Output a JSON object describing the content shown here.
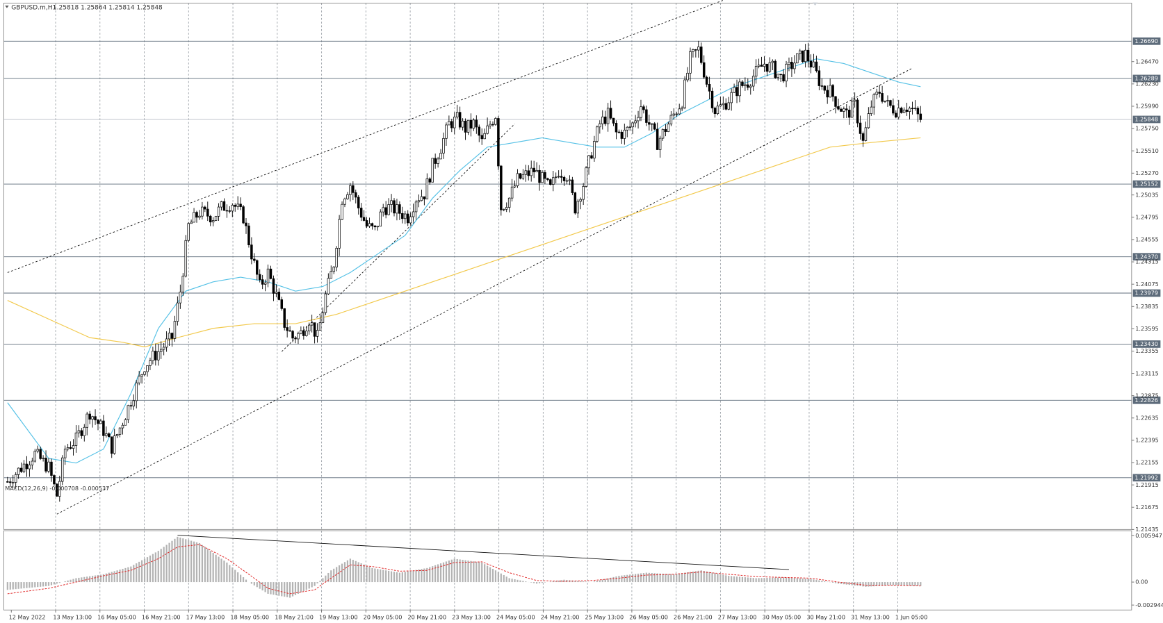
{
  "header": {
    "symbol": "GBPUSD.m,H1",
    "ohlc": "1.25818 1.25864 1.25814 1.25848"
  },
  "macd": {
    "label": "MACD(12,26,9) -0.000708 -0.000537",
    "ticks": [
      "0.005947",
      "0.00",
      "-0.002944"
    ]
  },
  "chart_data": {
    "type": "candlestick",
    "price_ticks": [
      "1.26470",
      "1.26230",
      "1.25990",
      "1.25750",
      "1.25510",
      "1.25270",
      "1.25035",
      "1.24795",
      "1.24555",
      "1.24315",
      "1.24075",
      "1.23835",
      "1.23595",
      "1.23355",
      "1.23115",
      "1.22875",
      "1.22635",
      "1.22395",
      "1.22155",
      "1.21915",
      "1.21675",
      "1.21435"
    ],
    "price_range": [
      1.21435,
      1.271
    ],
    "levels": [
      {
        "label": "1.26690",
        "value": 1.2669
      },
      {
        "label": "1.26289",
        "value": 1.26289
      },
      {
        "label": "1.25152",
        "value": 1.25152
      },
      {
        "label": "1.24370",
        "value": 1.2437
      },
      {
        "label": "1.23979",
        "value": 1.23979
      },
      {
        "label": "1.23430",
        "value": 1.2343
      },
      {
        "label": "1.22826",
        "value": 1.22826
      },
      {
        "label": "1.21992",
        "value": 1.21992
      }
    ],
    "current_price": {
      "label": "1.25848",
      "value": 1.25848
    },
    "time_labels": [
      "12 May 2022",
      "13 May 13:00",
      "16 May 05:00",
      "16 May 21:00",
      "17 May 13:00",
      "18 May 05:00",
      "18 May 21:00",
      "19 May 13:00",
      "20 May 05:00",
      "20 May 21:00",
      "23 May 13:00",
      "24 May 05:00",
      "24 May 21:00",
      "25 May 13:00",
      "26 May 05:00",
      "26 May 21:00",
      "27 May 13:00",
      "30 May 05:00",
      "30 May 21:00",
      "31 May 13:00",
      "1 Jun 05:00"
    ],
    "price_path": [
      [
        0,
        1.2195
      ],
      [
        5,
        1.221
      ],
      [
        10,
        1.2225
      ],
      [
        15,
        1.221
      ],
      [
        18,
        1.218
      ],
      [
        21,
        1.223
      ],
      [
        25,
        1.224
      ],
      [
        30,
        1.227
      ],
      [
        35,
        1.225
      ],
      [
        38,
        1.2232
      ],
      [
        42,
        1.226
      ],
      [
        46,
        1.229
      ],
      [
        50,
        1.232
      ],
      [
        55,
        1.2335
      ],
      [
        60,
        1.235
      ],
      [
        63,
        1.24
      ],
      [
        66,
        1.247
      ],
      [
        70,
        1.2485
      ],
      [
        75,
        1.248
      ],
      [
        78,
        1.249
      ],
      [
        82,
        1.2495
      ],
      [
        86,
        1.248
      ],
      [
        89,
        1.244
      ],
      [
        92,
        1.2405
      ],
      [
        95,
        1.242
      ],
      [
        98,
        1.2395
      ],
      [
        101,
        1.2365
      ],
      [
        104,
        1.235
      ],
      [
        107,
        1.2355
      ],
      [
        110,
        1.237
      ],
      [
        113,
        1.235
      ],
      [
        116,
        1.2395
      ],
      [
        119,
        1.243
      ],
      [
        122,
        1.25
      ],
      [
        125,
        1.2515
      ],
      [
        128,
        1.249
      ],
      [
        131,
        1.247
      ],
      [
        134,
        1.2465
      ],
      [
        137,
        1.249
      ],
      [
        140,
        1.249
      ],
      [
        143,
        1.2485
      ],
      [
        146,
        1.248
      ],
      [
        149,
        1.25
      ],
      [
        152,
        1.2505
      ],
      [
        155,
        1.2535
      ],
      [
        158,
        1.2555
      ],
      [
        161,
        1.258
      ],
      [
        164,
        1.2585
      ],
      [
        167,
        1.2575
      ],
      [
        170,
        1.258
      ],
      [
        173,
        1.256
      ],
      [
        176,
        1.258
      ],
      [
        178,
        1.259
      ],
      [
        180,
        1.249
      ],
      [
        183,
        1.25
      ],
      [
        186,
        1.252
      ],
      [
        189,
        1.2525
      ],
      [
        192,
        1.253
      ],
      [
        195,
        1.252
      ],
      [
        198,
        1.251
      ],
      [
        201,
        1.253
      ],
      [
        204,
        1.2525
      ],
      [
        207,
        1.249
      ],
      [
        210,
        1.2515
      ],
      [
        213,
        1.255
      ],
      [
        216,
        1.258
      ],
      [
        219,
        1.259
      ],
      [
        222,
        1.257
      ],
      [
        225,
        1.257
      ],
      [
        228,
        1.258
      ],
      [
        231,
        1.26
      ],
      [
        234,
        1.258
      ],
      [
        237,
        1.256
      ],
      [
        240,
        1.2575
      ],
      [
        243,
        1.259
      ],
      [
        246,
        1.2605
      ],
      [
        249,
        1.265
      ],
      [
        252,
        1.266
      ],
      [
        255,
        1.2625
      ],
      [
        258,
        1.2595
      ],
      [
        261,
        1.26
      ],
      [
        264,
        1.261
      ],
      [
        267,
        1.262
      ],
      [
        270,
        1.2625
      ],
      [
        273,
        1.2635
      ],
      [
        276,
        1.2645
      ],
      [
        279,
        1.264
      ],
      [
        282,
        1.263
      ],
      [
        285,
        1.264
      ],
      [
        288,
        1.265
      ],
      [
        291,
        1.2655
      ],
      [
        294,
        1.264
      ],
      [
        297,
        1.262
      ],
      [
        300,
        1.2615
      ],
      [
        303,
        1.26
      ],
      [
        306,
        1.259
      ],
      [
        309,
        1.26
      ],
      [
        312,
        1.256
      ],
      [
        315,
        1.26
      ],
      [
        318,
        1.2615
      ],
      [
        321,
        1.26
      ],
      [
        324,
        1.2595
      ],
      [
        327,
        1.26
      ],
      [
        330,
        1.2595
      ],
      [
        333,
        1.2585
      ]
    ],
    "ema_fast_path": [
      [
        0,
        1.228
      ],
      [
        15,
        1.222
      ],
      [
        25,
        1.2215
      ],
      [
        35,
        1.223
      ],
      [
        45,
        1.229
      ],
      [
        55,
        1.236
      ],
      [
        65,
        1.24
      ],
      [
        75,
        1.241
      ],
      [
        85,
        1.2415
      ],
      [
        95,
        1.241
      ],
      [
        105,
        1.24
      ],
      [
        115,
        1.2405
      ],
      [
        125,
        1.242
      ],
      [
        135,
        1.244
      ],
      [
        145,
        1.246
      ],
      [
        155,
        1.25
      ],
      [
        165,
        1.253
      ],
      [
        175,
        1.2555
      ],
      [
        185,
        1.256
      ],
      [
        195,
        1.2565
      ],
      [
        205,
        1.256
      ],
      [
        215,
        1.2555
      ],
      [
        225,
        1.2555
      ],
      [
        235,
        1.257
      ],
      [
        245,
        1.259
      ],
      [
        255,
        1.2605
      ],
      [
        265,
        1.262
      ],
      [
        275,
        1.263
      ],
      [
        285,
        1.264
      ],
      [
        295,
        1.265
      ],
      [
        305,
        1.2645
      ],
      [
        315,
        1.2635
      ],
      [
        325,
        1.2625
      ],
      [
        333,
        1.262
      ]
    ],
    "ema_slow_path": [
      [
        0,
        1.239
      ],
      [
        15,
        1.237
      ],
      [
        30,
        1.235
      ],
      [
        42,
        1.2345
      ],
      [
        50,
        1.234
      ],
      [
        62,
        1.235
      ],
      [
        75,
        1.236
      ],
      [
        90,
        1.2365
      ],
      [
        105,
        1.2365
      ],
      [
        120,
        1.2375
      ],
      [
        135,
        1.239
      ],
      [
        150,
        1.2405
      ],
      [
        165,
        1.242
      ],
      [
        180,
        1.2435
      ],
      [
        195,
        1.245
      ],
      [
        210,
        1.2465
      ],
      [
        225,
        1.248
      ],
      [
        240,
        1.2495
      ],
      [
        255,
        1.251
      ],
      [
        270,
        1.2525
      ],
      [
        285,
        1.254
      ],
      [
        300,
        1.2555
      ],
      [
        315,
        1.256
      ],
      [
        333,
        1.2565
      ]
    ],
    "trendlines": [
      {
        "p1": [
          0,
          1.242
        ],
        "p2": [
          285,
          1.274
        ]
      },
      {
        "p1": [
          18,
          1.216
        ],
        "p2": [
          330,
          1.264
        ]
      },
      {
        "p1": [
          100,
          1.2335
        ],
        "p2": [
          185,
          1.258
        ]
      }
    ],
    "macd_line_points": [
      [
        0,
        -0.001
      ],
      [
        15,
        -0.0005
      ],
      [
        25,
        0.0005
      ],
      [
        35,
        0.001
      ],
      [
        45,
        0.002
      ],
      [
        55,
        0.004
      ],
      [
        62,
        0.0058
      ],
      [
        70,
        0.005
      ],
      [
        80,
        0.0025
      ],
      [
        88,
        0.0
      ],
      [
        95,
        -0.0015
      ],
      [
        103,
        -0.002
      ],
      [
        112,
        -0.0005
      ],
      [
        118,
        0.0015
      ],
      [
        125,
        0.003
      ],
      [
        133,
        0.0018
      ],
      [
        143,
        0.0012
      ],
      [
        153,
        0.0018
      ],
      [
        163,
        0.003
      ],
      [
        173,
        0.0025
      ],
      [
        183,
        0.0005
      ],
      [
        193,
        -0.0002
      ],
      [
        203,
        0.0003
      ],
      [
        213,
        0.0
      ],
      [
        223,
        0.0008
      ],
      [
        233,
        0.0012
      ],
      [
        243,
        0.001
      ],
      [
        253,
        0.0015
      ],
      [
        263,
        0.0008
      ],
      [
        273,
        0.0005
      ],
      [
        283,
        0.0006
      ],
      [
        293,
        0.0004
      ],
      [
        303,
        -0.0002
      ],
      [
        313,
        -0.0006
      ],
      [
        323,
        -0.0004
      ],
      [
        333,
        -0.0005
      ]
    ],
    "macd_signal_points": [
      [
        0,
        -0.0015
      ],
      [
        15,
        -0.0008
      ],
      [
        25,
        0.0
      ],
      [
        35,
        0.0008
      ],
      [
        45,
        0.0015
      ],
      [
        55,
        0.003
      ],
      [
        62,
        0.0045
      ],
      [
        70,
        0.0048
      ],
      [
        80,
        0.003
      ],
      [
        88,
        0.001
      ],
      [
        95,
        -0.0008
      ],
      [
        103,
        -0.0015
      ],
      [
        112,
        -0.001
      ],
      [
        118,
        0.0005
      ],
      [
        125,
        0.0022
      ],
      [
        133,
        0.002
      ],
      [
        143,
        0.0014
      ],
      [
        153,
        0.0015
      ],
      [
        163,
        0.0025
      ],
      [
        173,
        0.0026
      ],
      [
        183,
        0.0012
      ],
      [
        193,
        0.0002
      ],
      [
        203,
        0.0001
      ],
      [
        213,
        0.0002
      ],
      [
        223,
        0.0005
      ],
      [
        233,
        0.0009
      ],
      [
        243,
        0.001
      ],
      [
        253,
        0.0013
      ],
      [
        263,
        0.001
      ],
      [
        273,
        0.0007
      ],
      [
        283,
        0.0006
      ],
      [
        293,
        0.0005
      ],
      [
        303,
        0.0
      ],
      [
        313,
        -0.0004
      ],
      [
        323,
        -0.0004
      ],
      [
        333,
        -0.0005
      ]
    ],
    "macd_divergence_line": {
      "p1": [
        62,
        0.006
      ],
      "p2": [
        285,
        0.0016
      ]
    },
    "macd_range": [
      -0.002944,
      0.005947
    ],
    "bar_count": 334,
    "colors": {
      "candle": "#000000",
      "ema_fast": "#55c1e6",
      "ema_slow": "#f2c94c",
      "signal": "#e02424",
      "histogram": "#b3b3b3",
      "level_line": "#5d6b7a",
      "level_tag": "#5d6b7a",
      "grid": "#9aa0a6"
    }
  }
}
